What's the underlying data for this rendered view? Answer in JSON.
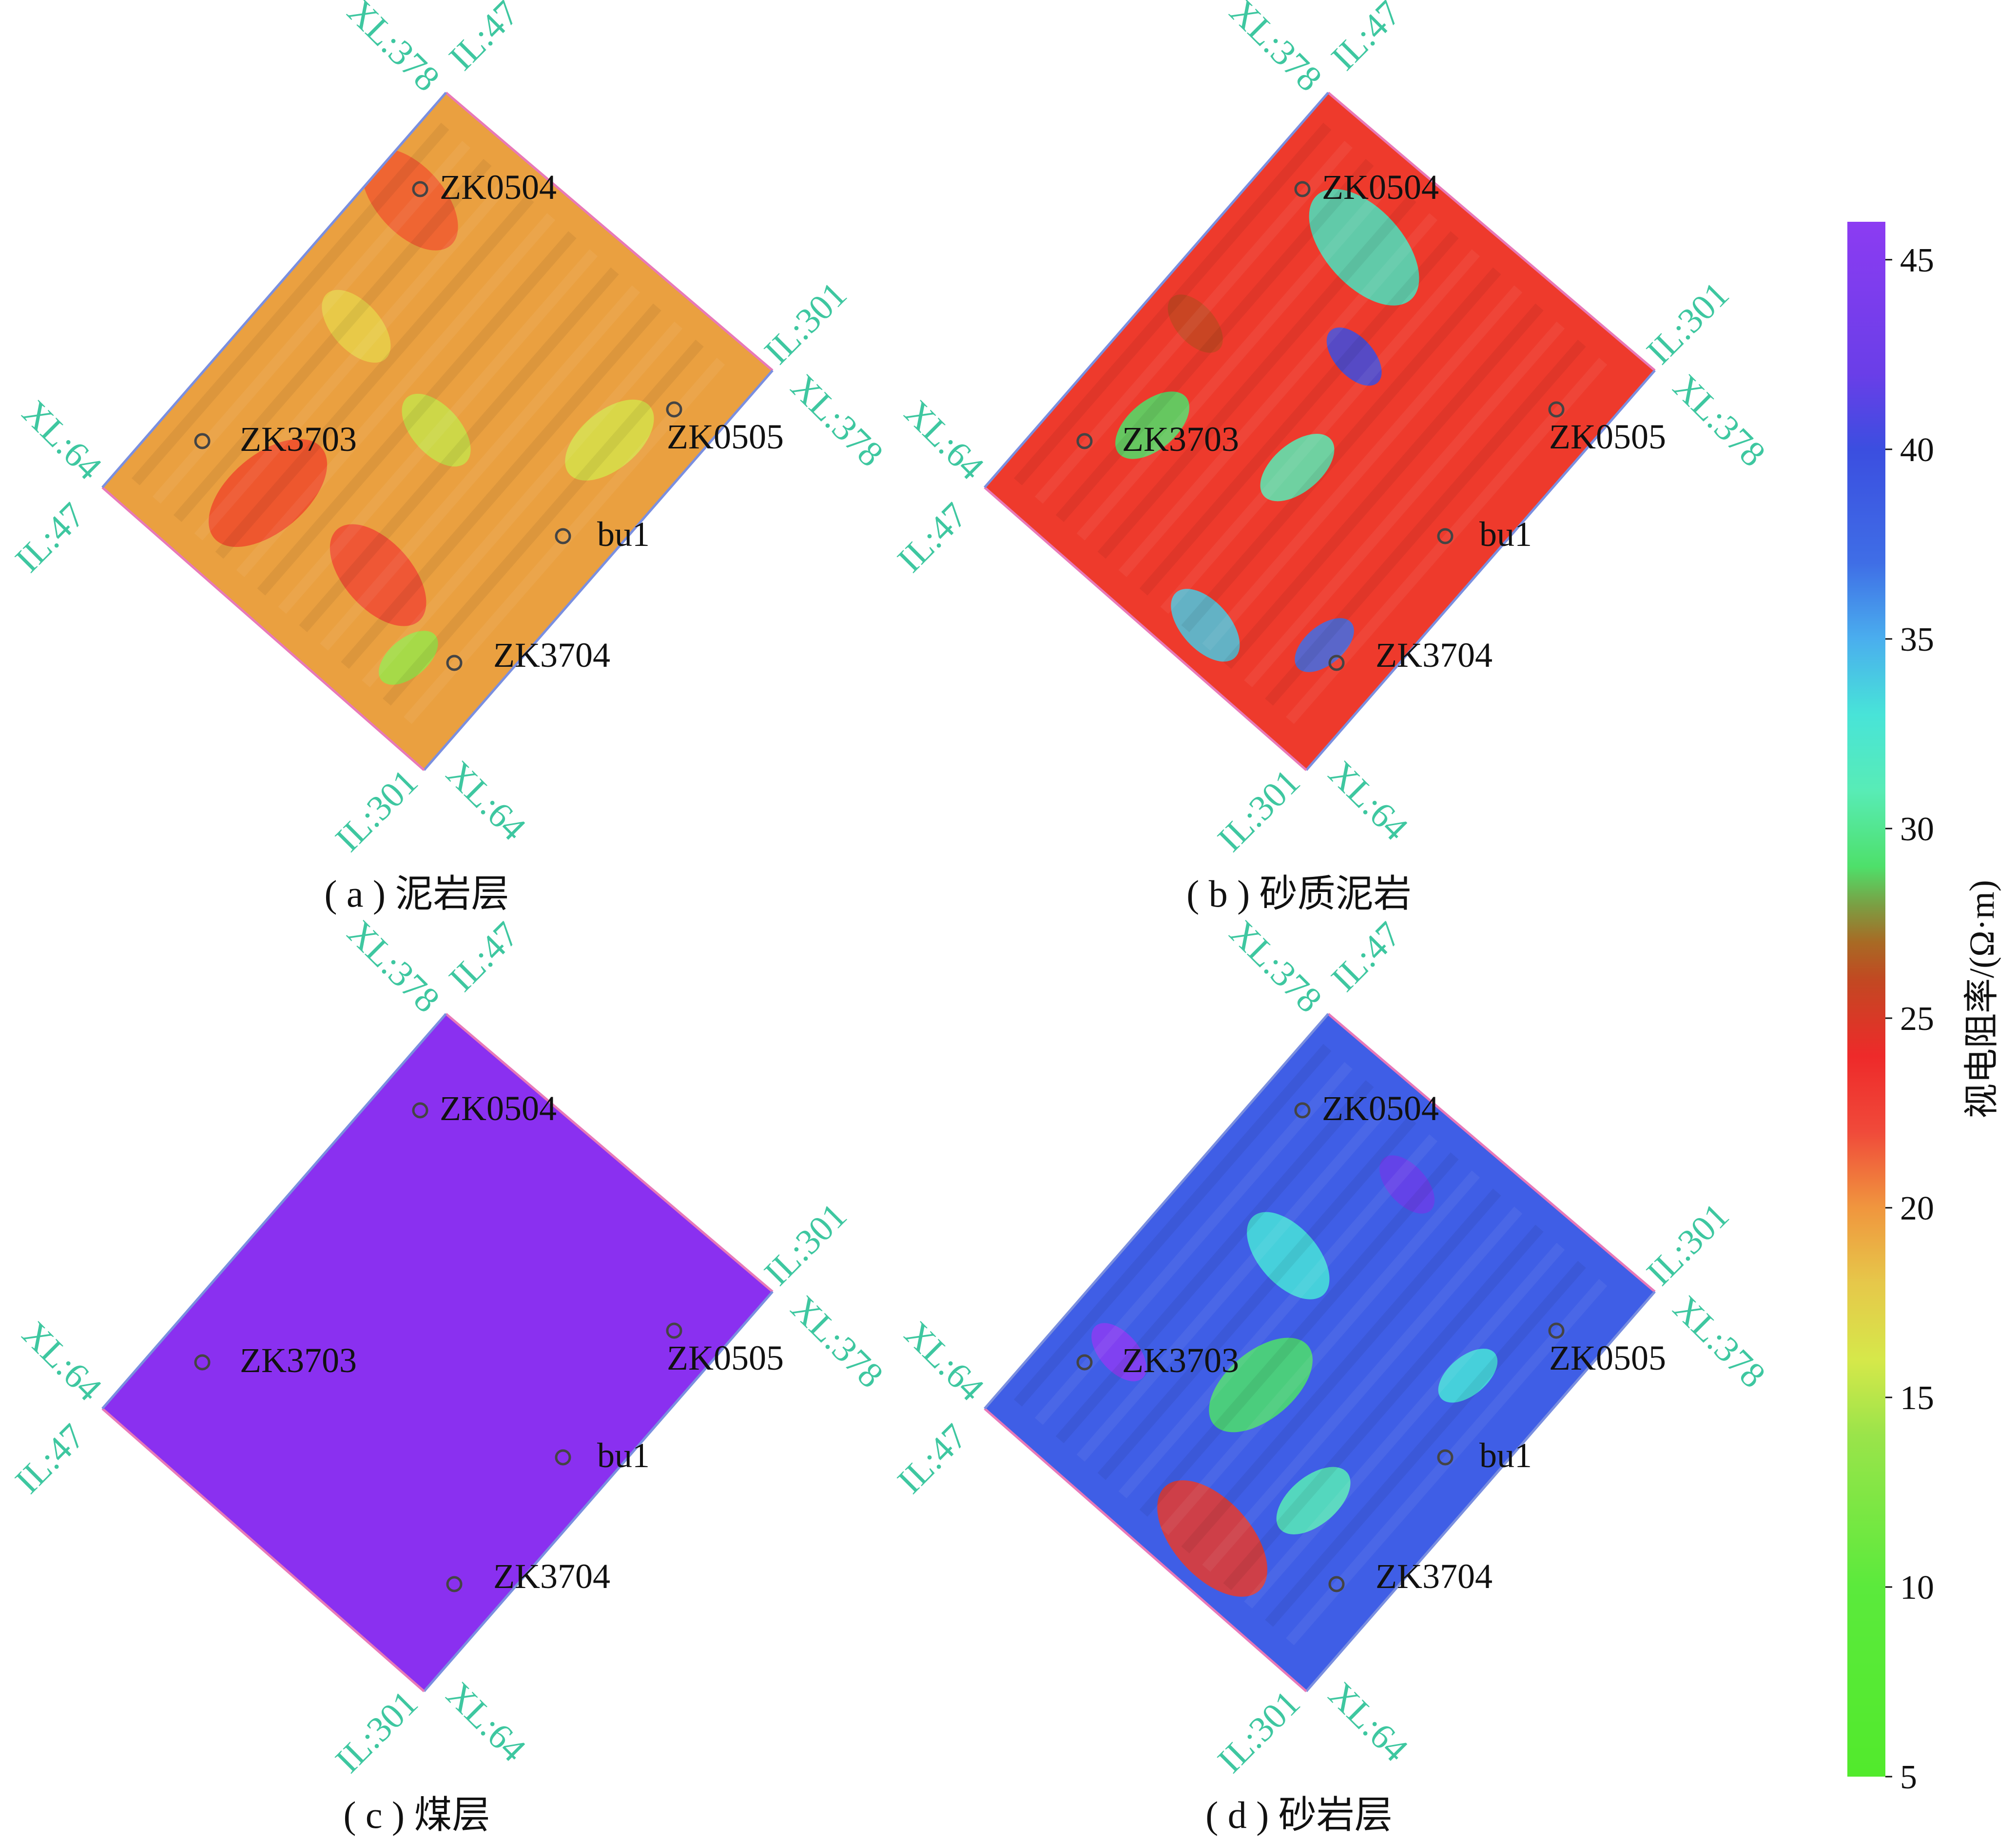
{
  "colors": {
    "axis_label": "#3ec7a0",
    "edge_blue": "#7a8fe0",
    "edge_pink": "#e879b8",
    "well_marker": "#444444"
  },
  "colorbar": {
    "title": "视电阻率/(Ω·m)",
    "min": 5,
    "max": 46,
    "ticks": [
      "45",
      "40",
      "35",
      "30",
      "25",
      "20",
      "15",
      "10",
      "5"
    ],
    "tick_values": [
      45,
      40,
      35,
      30,
      25,
      20,
      15,
      10,
      5
    ],
    "stops": [
      {
        "v": 5,
        "c": "#52ea2c"
      },
      {
        "v": 10,
        "c": "#5bea3c"
      },
      {
        "v": 14,
        "c": "#9ae44a"
      },
      {
        "v": 16,
        "c": "#d6e84a"
      },
      {
        "v": 18,
        "c": "#e6c84a"
      },
      {
        "v": 20,
        "c": "#f0963e"
      },
      {
        "v": 22,
        "c": "#f04a3a"
      },
      {
        "v": 24,
        "c": "#ee2a2a"
      },
      {
        "v": 26,
        "c": "#c24822"
      },
      {
        "v": 27,
        "c": "#a86a24"
      },
      {
        "v": 28,
        "c": "#7aa044"
      },
      {
        "v": 29,
        "c": "#4ee06a"
      },
      {
        "v": 31,
        "c": "#58ecb6"
      },
      {
        "v": 33,
        "c": "#48e4d8"
      },
      {
        "v": 35,
        "c": "#4aaeee"
      },
      {
        "v": 37,
        "c": "#3f6ee6"
      },
      {
        "v": 40,
        "c": "#3b4ee0"
      },
      {
        "v": 42,
        "c": "#6a3ee8"
      },
      {
        "v": 46,
        "c": "#8c3cf2"
      }
    ]
  },
  "axis_labels": {
    "top_xl": "XL:378",
    "top_il": "IL:47",
    "right_il": "IL:301",
    "right_xl": "XL:378",
    "left_xl": "XL:64",
    "left_il": "IL:47",
    "bottom_il": "IL:301",
    "bottom_xl": "XL:64"
  },
  "panels": [
    {
      "caption": "( a ) 泥岩层",
      "base_color": "#eaa040",
      "patches": [
        {
          "u": 0.1,
          "v": 0.2,
          "r": 0.14,
          "c": "#f05a30"
        },
        {
          "u": 0.3,
          "v": 0.8,
          "r": 0.16,
          "c": "#ee4a2c"
        },
        {
          "u": 0.62,
          "v": 0.78,
          "r": 0.14,
          "c": "#f04a34"
        },
        {
          "u": 0.82,
          "v": 0.3,
          "r": 0.12,
          "c": "#d6e04a"
        },
        {
          "u": 0.5,
          "v": 0.5,
          "r": 0.1,
          "c": "#c8e04a"
        },
        {
          "u": 0.8,
          "v": 0.86,
          "r": 0.08,
          "c": "#9ae44a"
        },
        {
          "u": 0.2,
          "v": 0.45,
          "r": 0.1,
          "c": "#e8d04a"
        }
      ]
    },
    {
      "caption": "( b ) 砂质泥岩",
      "base_color": "#ee3a2c",
      "patches": [
        {
          "u": 0.3,
          "v": 0.18,
          "r": 0.16,
          "c": "#48e4c0"
        },
        {
          "u": 0.52,
          "v": 0.58,
          "r": 0.1,
          "c": "#58ecb6"
        },
        {
          "u": 0.6,
          "v": 0.92,
          "r": 0.1,
          "c": "#4ac8e0"
        },
        {
          "u": 0.84,
          "v": 0.8,
          "r": 0.08,
          "c": "#3f6ee6"
        },
        {
          "u": 0.45,
          "v": 0.35,
          "r": 0.08,
          "c": "#3b4ee0"
        },
        {
          "u": 0.2,
          "v": 0.7,
          "r": 0.1,
          "c": "#4ee06a"
        },
        {
          "u": 0.12,
          "v": 0.5,
          "r": 0.08,
          "c": "#c24822"
        }
      ]
    },
    {
      "caption": "( c ) 煤层",
      "base_color": "#8a30f0",
      "patches": []
    },
    {
      "caption": "( d ) 砂岩层",
      "base_color": "#3f5ee6",
      "patches": [
        {
          "u": 0.6,
          "v": 0.9,
          "r": 0.16,
          "c": "#e83a2c"
        },
        {
          "u": 0.45,
          "v": 0.62,
          "r": 0.14,
          "c": "#4ee06a"
        },
        {
          "u": 0.3,
          "v": 0.4,
          "r": 0.12,
          "c": "#48e4d8"
        },
        {
          "u": 0.72,
          "v": 0.72,
          "r": 0.1,
          "c": "#58ecb6"
        },
        {
          "u": 0.15,
          "v": 0.75,
          "r": 0.08,
          "c": "#8c3cf2"
        },
        {
          "u": 0.8,
          "v": 0.35,
          "r": 0.08,
          "c": "#48e4d8"
        },
        {
          "u": 0.4,
          "v": 0.15,
          "r": 0.08,
          "c": "#6a3ee8"
        }
      ]
    }
  ],
  "wells": [
    {
      "name": "ZK0504"
    },
    {
      "name": "ZK3703"
    },
    {
      "name": "ZK0505"
    },
    {
      "name": "bu1"
    },
    {
      "name": "ZK3704"
    }
  ]
}
